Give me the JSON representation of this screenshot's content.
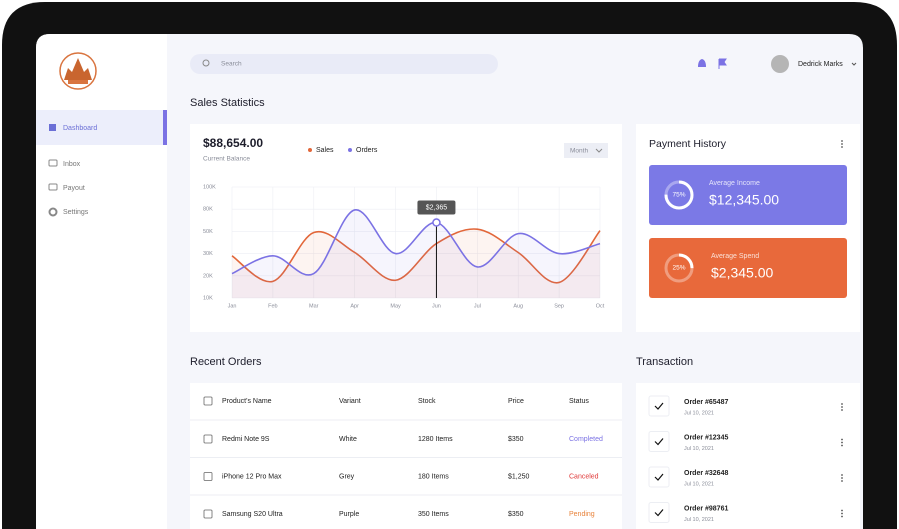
{
  "sidebar": {
    "nav": [
      "Dashboard",
      "Inbox",
      "Payout",
      "Settings"
    ]
  },
  "header": {
    "search_placeholder": "Search",
    "user": "Dedrick Marks"
  },
  "sales_statistics": {
    "title": "Sales Statistics",
    "balance": "$88,654.00",
    "balance_label": "Current Balance",
    "filter": "Month",
    "chart": {
      "type": "line",
      "categories": [
        "Jan",
        "Feb",
        "Mar",
        "Apr",
        "May",
        "Jun",
        "Jul",
        "Aug",
        "Sep",
        "Oct"
      ],
      "series": [
        {
          "name": "Sales",
          "color": "#e2673a",
          "values": [
            29000,
            17500,
            49000,
            31000,
            18000,
            39000,
            53000,
            31000,
            17000,
            51000
          ]
        },
        {
          "name": "Orders",
          "color": "#7b72e4",
          "values": [
            21000,
            29000,
            21000,
            79000,
            30000,
            62000,
            24000,
            48000,
            30000,
            39000
          ]
        }
      ],
      "ylim": [
        10000,
        100000
      ],
      "yticks": [
        {
          "value": 10000,
          "label": "10K"
        },
        {
          "value": 20000,
          "label": "20K"
        },
        {
          "value": 30000,
          "label": "30K"
        },
        {
          "value": 50000,
          "label": "50K"
        },
        {
          "value": 80000,
          "label": "80K"
        },
        {
          "value": 100000,
          "label": "100K"
        }
      ],
      "grid": true,
      "tooltip": "$2,365"
    }
  },
  "payment_history": {
    "title": "Payment History",
    "cards": [
      {
        "label": "Average Income",
        "amount": "$12,345.00",
        "percent": 75,
        "percent_label": "75%",
        "color": "#7b79e6"
      },
      {
        "label": "Average Spend",
        "amount": "$2,345.00",
        "percent": 25,
        "percent_label": "25%",
        "color": "#e8693b"
      }
    ]
  },
  "recent_orders": {
    "title": "Recent Orders",
    "columns": [
      "Product's Name",
      "Variant",
      "Stock",
      "Price",
      "Status"
    ],
    "rows": [
      [
        "Redmi Note 9S",
        "White",
        "1280 Items",
        "$350",
        "Completed"
      ],
      [
        "iPhone 12 Pro Max",
        "Grey",
        "180 Items",
        "$1,250",
        "Canceled"
      ],
      [
        "Samsung S20 Ultra",
        "Purple",
        "350 Items",
        "$350",
        "Pending"
      ]
    ]
  },
  "transactions": {
    "title": "Transaction",
    "items": [
      {
        "order": "Order #65487",
        "date": "Jul 10, 2021"
      },
      {
        "order": "Order #12345",
        "date": "Jul 10, 2021"
      },
      {
        "order": "Order #32648",
        "date": "Jul 10, 2021"
      },
      {
        "order": "Order #98761",
        "date": "Jul 10, 2021"
      }
    ]
  }
}
